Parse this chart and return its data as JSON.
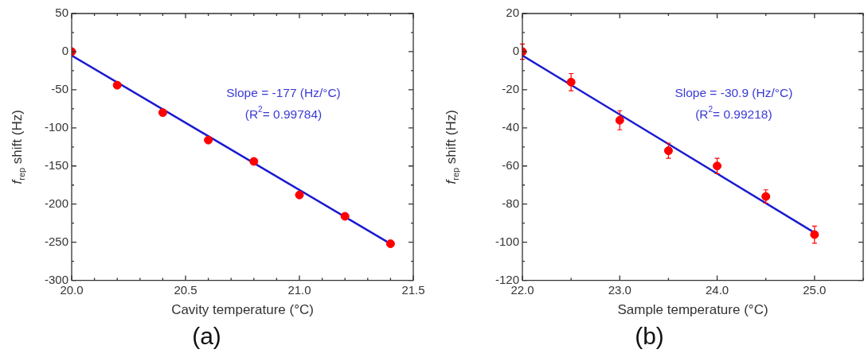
{
  "chart_data": [
    {
      "type": "scatter",
      "title": "(a)",
      "xlabel": "Cavity temperature (°C)",
      "ylabel": "f$_{rep}$ shift (Hz)",
      "annotations": [
        "Slope = -177 (Hz/°C)",
        "(R$^{2}$= 0.99784)"
      ],
      "xlim": [
        20.0,
        21.5
      ],
      "ylim": [
        -300,
        50
      ],
      "xticks": [
        {
          "value": 20.0,
          "label": "20.0"
        },
        {
          "value": 20.1,
          "label": null
        },
        {
          "value": 20.2,
          "label": null
        },
        {
          "value": 20.3,
          "label": null
        },
        {
          "value": 20.4,
          "label": null
        },
        {
          "value": 20.5,
          "label": "20.5"
        },
        {
          "value": 20.6,
          "label": null
        },
        {
          "value": 20.7,
          "label": null
        },
        {
          "value": 20.8,
          "label": null
        },
        {
          "value": 20.9,
          "label": null
        },
        {
          "value": 21.0,
          "label": "21.0"
        },
        {
          "value": 21.1,
          "label": null
        },
        {
          "value": 21.2,
          "label": null
        },
        {
          "value": 21.3,
          "label": null
        },
        {
          "value": 21.4,
          "label": null
        },
        {
          "value": 21.5,
          "label": "21.5"
        }
      ],
      "yticks": [
        -300,
        {
          "value": -275,
          "label": null
        },
        -250,
        {
          "value": -225,
          "label": null
        },
        -200,
        {
          "value": -175,
          "label": null
        },
        -150,
        {
          "value": -125,
          "label": null
        },
        -100,
        {
          "value": -75,
          "label": null
        },
        -50,
        {
          "value": -25,
          "label": null
        },
        0,
        {
          "value": 25,
          "label": null
        },
        50
      ],
      "series": [
        {
          "type": "line",
          "color": "#1a1ad0",
          "marker": "none",
          "x": [
            20.0,
            21.4
          ],
          "values": [
            -5,
            -252
          ]
        },
        {
          "color": "#ff0000",
          "marker": "circle",
          "x": [
            20.0,
            20.2,
            20.4,
            20.6,
            20.8,
            21.0,
            21.2,
            21.4
          ],
          "values": [
            0,
            -44,
            -80,
            -116,
            -144,
            -188,
            -216,
            -252
          ]
        }
      ]
    },
    {
      "type": "scatter",
      "title": "(b)",
      "xlabel": "Sample temperature (°C)",
      "ylabel": "f$_{rep}$ shift (Hz)",
      "annotations": [
        "Slope = -30.9 (Hz/°C)",
        "(R$^{2}$= 0.99218)"
      ],
      "xlim": [
        22.0,
        25.5
      ],
      "ylim": [
        -120,
        20
      ],
      "xticks": [
        {
          "value": 22.0,
          "label": "22.0"
        },
        {
          "value": 22.5,
          "label": null
        },
        {
          "value": 23.0,
          "label": "23.0"
        },
        {
          "value": 23.5,
          "label": null
        },
        {
          "value": 24.0,
          "label": "24.0"
        },
        {
          "value": 24.5,
          "label": null
        },
        {
          "value": 25.0,
          "label": "25.0"
        },
        {
          "value": 25.5,
          "label": null
        }
      ],
      "yticks": [
        -120,
        {
          "value": -110,
          "label": null
        },
        -100,
        {
          "value": -90,
          "label": null
        },
        -80,
        {
          "value": -70,
          "label": null
        },
        -60,
        {
          "value": -50,
          "label": null
        },
        -40,
        {
          "value": -30,
          "label": null
        },
        -20,
        {
          "value": -10,
          "label": null
        },
        0,
        {
          "value": 10,
          "label": null
        },
        20
      ],
      "series": [
        {
          "type": "line",
          "color": "#1a1ad0",
          "marker": "none",
          "x": [
            22.0,
            25.0
          ],
          "values": [
            -2,
            -95
          ]
        },
        {
          "color": "#ff0000",
          "marker": "circle",
          "x": [
            22.0,
            22.5,
            23.0,
            23.5,
            24.0,
            24.5,
            25.0
          ],
          "values": [
            0,
            -16,
            -36,
            -52,
            -60,
            -76,
            -96
          ],
          "errors": [
            4,
            4.5,
            5,
            4,
            4,
            3.5,
            4.5
          ]
        }
      ]
    }
  ]
}
